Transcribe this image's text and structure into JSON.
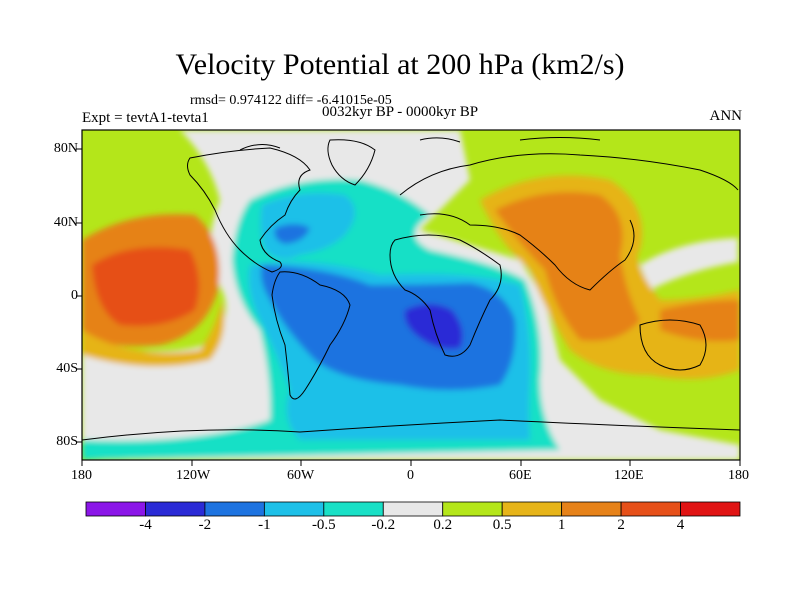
{
  "title": "Velocity Potential at 200 hPa (km2/s)",
  "stats": "rmsd= 0.974122 diff= -6.41015e-05",
  "left_label": "Expt = tevtA1-tevta1",
  "center_label": "0032kyr BP - 0000kyr BP",
  "right_label": "ANN",
  "map": {
    "lon_ticks": [
      "180",
      "120W",
      "60W",
      "0",
      "60E",
      "120E",
      "180"
    ],
    "lat_ticks": [
      "80N",
      "40N",
      "0",
      "40S",
      "80S"
    ]
  },
  "colorbar": {
    "labels": [
      "-4",
      "-2",
      "-1",
      "-0.5",
      "-0.2",
      "0.2",
      "0.5",
      "1",
      "2",
      "4"
    ],
    "colors": [
      "#8b16e8",
      "#2b2bd6",
      "#1e73e0",
      "#1ec0e8",
      "#19e0c6",
      "#e8e8e8",
      "#b4e61a",
      "#e6b419",
      "#e68219",
      "#e65019",
      "#e01414"
    ]
  },
  "palette": {
    "land_lines": "#000000",
    "frame": "#000000"
  }
}
